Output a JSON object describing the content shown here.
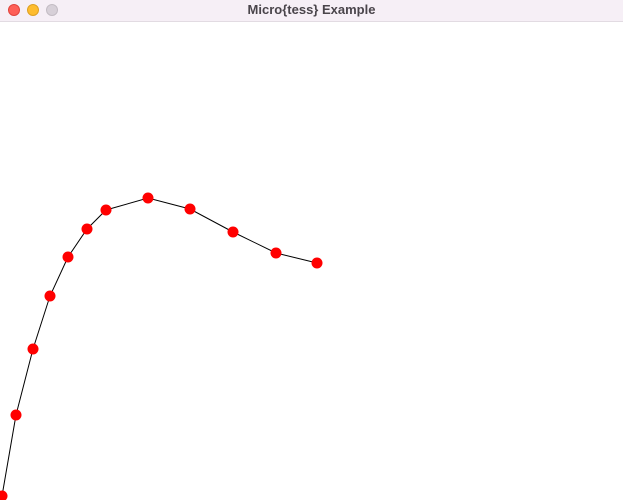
{
  "window": {
    "title": "Micro{tess} Example"
  },
  "colors": {
    "titlebar": "#f6eff6",
    "close": "#fe5f57",
    "minimize": "#febc2e",
    "zoom": "#d7d0d8",
    "curve": "#000000",
    "point": "#ff0000"
  },
  "chart_data": {
    "type": "line",
    "x": [
      2,
      16,
      33,
      50,
      68,
      87,
      106,
      148,
      190,
      233,
      276,
      317
    ],
    "y": [
      496,
      415,
      349,
      296,
      257,
      229,
      210,
      198,
      209,
      232,
      253,
      263
    ],
    "title": "",
    "xlabel": "",
    "ylabel": "",
    "xlim": [
      0,
      623
    ],
    "ylim": [
      500,
      22
    ],
    "grid": false
  }
}
